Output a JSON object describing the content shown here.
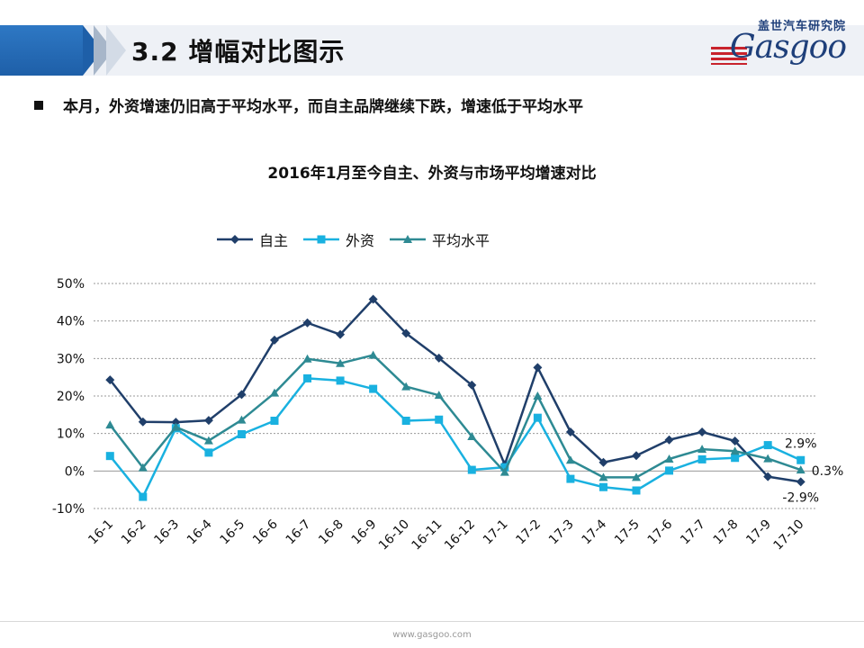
{
  "header": {
    "title": "3.2  增幅对比图示",
    "logo_cn": "盖世汽车研究院",
    "logo_en": "Gasgoo"
  },
  "bullet": "本月，外资增速仍旧高于平均水平，而自主品牌继续下跌，增速低于平均水平",
  "footer": "www.gasgoo.com",
  "chart_data": {
    "type": "line",
    "title": "2016年1月至今自主、外资与市场平均增速对比",
    "categories": [
      "16-1",
      "16-2",
      "16-3",
      "16-4",
      "16-5",
      "16-6",
      "16-7",
      "16-8",
      "16-9",
      "16-10",
      "16-11",
      "16-12",
      "17-1",
      "17-2",
      "17-3",
      "17-4",
      "17-5",
      "17-6",
      "17-7",
      "17-8",
      "17-9",
      "17-10"
    ],
    "y_ticks": [
      "50%",
      "40%",
      "30%",
      "20%",
      "10%",
      "0%",
      "-10%"
    ],
    "ylim": [
      -10,
      50
    ],
    "grid": true,
    "legend_position": "top-left",
    "series": [
      {
        "name": "自主",
        "color": "#203f6a",
        "marker": "diamond",
        "values": [
          24.3,
          13.1,
          13.0,
          13.5,
          20.4,
          34.9,
          39.5,
          36.4,
          45.8,
          36.7,
          30.1,
          22.9,
          1.7,
          27.6,
          10.4,
          2.3,
          4.1,
          8.3,
          10.4,
          8.0,
          -1.5,
          -2.9
        ]
      },
      {
        "name": "外资",
        "color": "#19b1e0",
        "marker": "square",
        "values": [
          4.0,
          -6.9,
          11.4,
          4.9,
          9.8,
          13.4,
          24.7,
          24.1,
          21.9,
          13.4,
          13.7,
          0.3,
          1.0,
          14.2,
          -2.1,
          -4.3,
          -5.2,
          0.1,
          3.1,
          3.5,
          6.9,
          2.9
        ]
      },
      {
        "name": "平均水平",
        "color": "#2e8a93",
        "marker": "triangle",
        "values": [
          12.3,
          0.9,
          11.7,
          8.1,
          13.6,
          20.8,
          29.9,
          28.7,
          30.9,
          22.5,
          20.2,
          9.2,
          -0.3,
          20.0,
          2.9,
          -1.7,
          -1.7,
          3.2,
          5.8,
          5.3,
          3.3,
          0.3
        ]
      }
    ],
    "annotations": [
      {
        "series": "外资",
        "category": "17-10",
        "text": "2.9%"
      },
      {
        "series": "平均水平",
        "category": "17-10",
        "text": "0.3%"
      },
      {
        "series": "自主",
        "category": "17-10",
        "text": "-2.9%"
      }
    ]
  }
}
